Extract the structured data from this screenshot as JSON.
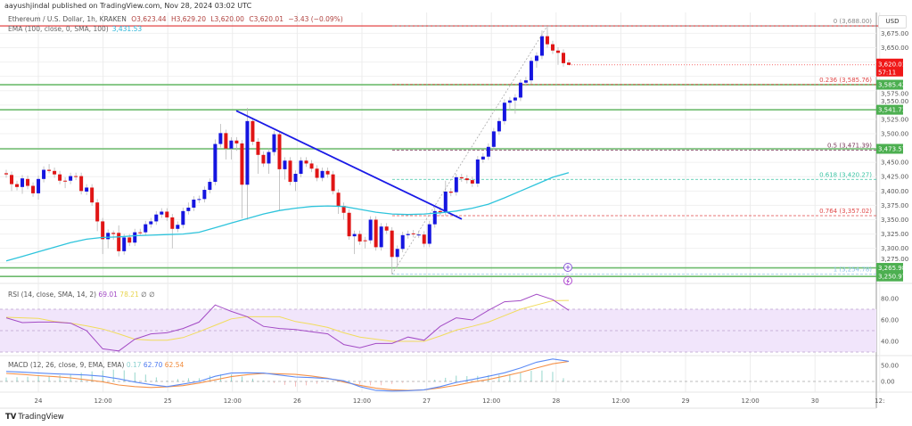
{
  "header": {
    "published": "aayushjindal published on TradingView.com, Nov 28, 2024 03:02 UTC"
  },
  "legend": {
    "symbol": "Ethereum / U.S. Dollar, 1h, KRAKEN",
    "open": "O3,623.44",
    "high": "H3,629.20",
    "low": "L3,620.00",
    "close": "C3,620.01",
    "change": "−3.43 (−0.09%)",
    "ema_label": "EMA (100, close, 0, SMA, 100)",
    "ema_value": "3,431.53"
  },
  "currency_button": "USD",
  "branding": {
    "logo_mark": "TV",
    "name": "TradingView"
  },
  "colors": {
    "up": "#1515e0",
    "down": "#e01515",
    "ema": "#2ec4dc",
    "trendline": "#1a1ae6",
    "support": "#6dbb6d",
    "resistance": "#e03030",
    "rsi": "#a34bc5",
    "rsi_sma": "#f1dc5c",
    "macd": "#5b8af5",
    "signal": "#f5924a"
  },
  "chart_data": {
    "type": "candlestick",
    "symbol": "Ethereum / U.S. Dollar",
    "interval": "1h",
    "ylim": [
      3232,
      3712
    ],
    "y_ticks": [
      "3,675.00",
      "3,650.00",
      "3,575.00",
      "3,550.00",
      "3,525.00",
      "3,500.00",
      "3,450.00",
      "3,425.00",
      "3,400.00",
      "3,375.00",
      "3,350.00",
      "3,325.00",
      "3,300.00",
      "3,275.00"
    ],
    "x_ticks": [
      "24",
      "12:00",
      "25",
      "12:00",
      "26",
      "12:00",
      "27",
      "12:00",
      "28",
      "12:00",
      "29",
      "12:00",
      "30",
      "12:"
    ],
    "candles": [
      [
        3431,
        3437,
        3423,
        3429
      ],
      [
        3428,
        3434,
        3400,
        3412
      ],
      [
        3412,
        3418,
        3401,
        3407
      ],
      [
        3407,
        3428,
        3395,
        3422
      ],
      [
        3421,
        3427,
        3403,
        3409
      ],
      [
        3409,
        3415,
        3390,
        3396
      ],
      [
        3396,
        3427,
        3385,
        3421
      ],
      [
        3421,
        3443,
        3415,
        3437
      ],
      [
        3437,
        3447,
        3431,
        3435
      ],
      [
        3435,
        3441,
        3423,
        3429
      ],
      [
        3429,
        3435,
        3412,
        3418
      ],
      [
        3418,
        3424,
        3405,
        3417
      ],
      [
        3418,
        3432,
        3412,
        3426
      ],
      [
        3426,
        3432,
        3419,
        3425
      ],
      [
        3426,
        3432,
        3394,
        3400
      ],
      [
        3399,
        3412,
        3393,
        3406
      ],
      [
        3406,
        3412,
        3374,
        3380
      ],
      [
        3380,
        3386,
        3330,
        3347
      ],
      [
        3347,
        3353,
        3290,
        3316
      ],
      [
        3316,
        3333,
        3300,
        3327
      ],
      [
        3327,
        3331,
        3315,
        3325
      ],
      [
        3327,
        3340,
        3286,
        3295
      ],
      [
        3295,
        3325,
        3289,
        3319
      ],
      [
        3319,
        3325,
        3304,
        3310
      ],
      [
        3310,
        3334,
        3304,
        3328
      ],
      [
        3328,
        3334,
        3322,
        3327
      ],
      [
        3328,
        3348,
        3322,
        3342
      ],
      [
        3342,
        3353,
        3336,
        3347
      ],
      [
        3347,
        3365,
        3341,
        3359
      ],
      [
        3359,
        3370,
        3353,
        3364
      ],
      [
        3364,
        3370,
        3348,
        3354
      ],
      [
        3354,
        3360,
        3300,
        3334
      ],
      [
        3334,
        3347,
        3328,
        3341
      ],
      [
        3341,
        3371,
        3335,
        3365
      ],
      [
        3365,
        3380,
        3359,
        3371
      ],
      [
        3371,
        3391,
        3365,
        3385
      ],
      [
        3385,
        3392,
        3379,
        3386
      ],
      [
        3386,
        3408,
        3380,
        3402
      ],
      [
        3402,
        3422,
        3396,
        3416
      ],
      [
        3416,
        3490,
        3410,
        3482
      ],
      [
        3482,
        3517,
        3476,
        3501
      ],
      [
        3501,
        3507,
        3455,
        3474
      ],
      [
        3474,
        3494,
        3455,
        3488
      ],
      [
        3488,
        3494,
        3470,
        3483
      ],
      [
        3483,
        3489,
        3352,
        3411
      ],
      [
        3411,
        3545,
        3350,
        3522
      ],
      [
        3522,
        3528,
        3480,
        3486
      ],
      [
        3486,
        3492,
        3430,
        3463
      ],
      [
        3463,
        3469,
        3442,
        3448
      ],
      [
        3448,
        3474,
        3430,
        3468
      ],
      [
        3468,
        3505,
        3462,
        3499
      ],
      [
        3499,
        3505,
        3366,
        3438
      ],
      [
        3438,
        3459,
        3420,
        3453
      ],
      [
        3453,
        3459,
        3410,
        3416
      ],
      [
        3416,
        3436,
        3400,
        3430
      ],
      [
        3430,
        3459,
        3424,
        3453
      ],
      [
        3453,
        3459,
        3442,
        3448
      ],
      [
        3448,
        3454,
        3433,
        3439
      ],
      [
        3439,
        3445,
        3417,
        3423
      ],
      [
        3423,
        3441,
        3417,
        3435
      ],
      [
        3435,
        3441,
        3423,
        3429
      ],
      [
        3429,
        3435,
        3394,
        3400
      ],
      [
        3397,
        3403,
        3360,
        3374
      ],
      [
        3374,
        3380,
        3350,
        3362
      ],
      [
        3362,
        3368,
        3315,
        3321
      ],
      [
        3321,
        3331,
        3290,
        3325
      ],
      [
        3325,
        3331,
        3306,
        3312
      ],
      [
        3314,
        3320,
        3300,
        3313
      ],
      [
        3314,
        3356,
        3308,
        3350
      ],
      [
        3350,
        3356,
        3296,
        3302
      ],
      [
        3302,
        3344,
        3296,
        3338
      ],
      [
        3338,
        3344,
        3325,
        3331
      ],
      [
        3331,
        3337,
        3254.78,
        3285
      ],
      [
        3285,
        3305,
        3265,
        3299
      ],
      [
        3299,
        3329,
        3293,
        3323
      ],
      [
        3323,
        3331,
        3317,
        3325
      ],
      [
        3326,
        3332,
        3319,
        3325
      ],
      [
        3324,
        3330,
        3318,
        3324
      ],
      [
        3324,
        3330,
        3302,
        3308
      ],
      [
        3308,
        3348,
        3302,
        3342
      ],
      [
        3342,
        3371,
        3336,
        3365
      ],
      [
        3365,
        3372,
        3357,
        3363
      ],
      [
        3363,
        3418,
        3357,
        3399
      ],
      [
        3399,
        3405,
        3391,
        3397
      ],
      [
        3398,
        3430,
        3392,
        3424
      ],
      [
        3424,
        3430,
        3416,
        3422
      ],
      [
        3422,
        3428,
        3413,
        3419
      ],
      [
        3419,
        3425,
        3407,
        3413
      ],
      [
        3413,
        3461,
        3407,
        3455
      ],
      [
        3455,
        3466,
        3449,
        3460
      ],
      [
        3460,
        3483,
        3454,
        3477
      ],
      [
        3477,
        3510,
        3471,
        3504
      ],
      [
        3504,
        3528,
        3498,
        3522
      ],
      [
        3522,
        3560,
        3516,
        3554
      ],
      [
        3554,
        3564,
        3540,
        3558
      ],
      [
        3558,
        3569,
        3535,
        3563
      ],
      [
        3563,
        3595,
        3557,
        3589
      ],
      [
        3589,
        3599,
        3583,
        3593
      ],
      [
        3593,
        3633,
        3587,
        3627
      ],
      [
        3627,
        3642,
        3615,
        3636
      ],
      [
        3636,
        3680,
        3630,
        3670
      ],
      [
        3670,
        3688,
        3650,
        3656
      ],
      [
        3656,
        3662,
        3639,
        3645
      ],
      [
        3645,
        3651,
        3620,
        3641
      ],
      [
        3641,
        3647,
        3617,
        3623
      ],
      [
        3624,
        3629.2,
        3620,
        3620.01
      ]
    ],
    "ema_100": [
      3278,
      3286,
      3294,
      3302,
      3310,
      3316,
      3319,
      3320,
      3322,
      3323,
      3324,
      3325,
      3328,
      3336,
      3344,
      3352,
      3360,
      3366,
      3370,
      3373,
      3374,
      3373,
      3368,
      3363,
      3360,
      3359,
      3360,
      3362,
      3365,
      3370,
      3377,
      3388,
      3400,
      3412,
      3424,
      3432
    ],
    "horizontal_levels": [
      {
        "value": 3688.0,
        "kind": "resistance"
      },
      {
        "value": 3585.42,
        "label": "3,585.42"
      },
      {
        "value": 3541.73,
        "label": "3,541.73"
      },
      {
        "value": 3473.57,
        "label": "3,473.57"
      },
      {
        "value": 3265.98,
        "label": "3,265.98"
      },
      {
        "value": 3250.97,
        "label": "3,250.97"
      }
    ],
    "last_price": {
      "value": 3620.01,
      "label": "3,620.01",
      "countdown": "57:11"
    },
    "trendline": {
      "from": 3540,
      "to": 3351
    },
    "fibonacci": [
      {
        "ratio": "0",
        "value": 3688.0,
        "label": "0 (3,688.00)",
        "color": "#888888"
      },
      {
        "ratio": "0.236",
        "value": 3585.76,
        "label": "0.236 (3,585.76)",
        "color": "#e04a4a"
      },
      {
        "ratio": "0.5",
        "value": 3471.39,
        "label": "0.5 (3,471.39)",
        "color": "#7a3a5a"
      },
      {
        "ratio": "0.618",
        "value": 3420.27,
        "label": "0.618 (3,420.27)",
        "color": "#3cc4a4"
      },
      {
        "ratio": "0.764",
        "value": 3357.02,
        "label": "0.764 (3,357.02)",
        "color": "#e04a4a"
      },
      {
        "ratio": "1",
        "value": 3254.78,
        "label": "1 (3,254.78)",
        "color": "#8ec4e8"
      }
    ],
    "rsi": {
      "label": "RSI (14, close, SMA, 14, 2)",
      "value": "69.01",
      "sma_value": "78.21",
      "extra": "∅ ∅",
      "y_ticks": [
        "80.00",
        "60.00",
        "40.00"
      ],
      "band": [
        30,
        70
      ],
      "values": [
        62,
        57.5,
        58,
        58,
        57,
        50,
        33,
        31,
        42,
        47,
        48,
        52,
        58,
        74,
        68,
        63,
        54,
        52,
        51,
        49,
        47,
        37,
        34,
        38,
        38,
        44,
        41,
        54,
        62,
        60,
        69,
        77,
        78,
        84,
        79,
        69.01
      ],
      "sma": [
        62.5,
        62,
        61.5,
        58.5,
        57,
        54.5,
        51.5,
        47,
        42,
        41,
        41,
        43.5,
        49,
        55,
        61,
        63,
        63,
        63,
        58.5,
        56,
        53,
        48,
        44,
        42,
        40,
        40,
        40,
        45,
        50.5,
        54,
        58,
        64,
        70,
        74,
        78,
        78.21
      ]
    },
    "macd": {
      "label": "MACD (12, 26, close, 9, EMA, EMA)",
      "histogram_value": "0.17",
      "macd_value": "62.70",
      "signal_value": "62.54",
      "y_ticks": [
        "50.00",
        "0.00"
      ],
      "macd": [
        31,
        29,
        26,
        24,
        22,
        20,
        16,
        8,
        -2,
        -10,
        -16,
        -8,
        0,
        16,
        26,
        27,
        26,
        20,
        14,
        12,
        9,
        2,
        -16,
        -28,
        -30,
        -29,
        -26,
        -16,
        -3,
        6,
        16,
        27,
        42,
        60,
        70,
        62.7
      ],
      "signal": [
        25,
        22,
        18,
        15,
        11,
        5,
        -1,
        -11,
        -16,
        -19,
        -17,
        -13,
        -5,
        5,
        15,
        21,
        25,
        24,
        22,
        17,
        10,
        -2,
        -12,
        -21,
        -26,
        -28,
        -26,
        -20,
        -12,
        -2,
        6,
        17,
        28,
        42,
        55,
        62.54
      ]
    }
  }
}
